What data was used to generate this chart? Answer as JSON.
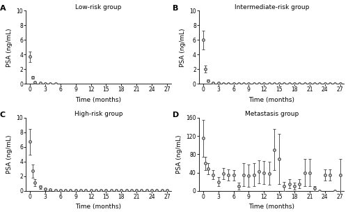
{
  "subplots": [
    {
      "label": "A",
      "title": "Low-risk group",
      "ylim": [
        0,
        10
      ],
      "yticks": [
        0,
        2,
        4,
        6,
        8,
        10
      ],
      "ylabel": "PSA (ng/mL)",
      "xlabel": "Time (months)",
      "xticks": [
        0,
        3,
        6,
        9,
        12,
        15,
        18,
        21,
        24,
        27
      ],
      "x": [
        0,
        0.5,
        1,
        2,
        3,
        4,
        5
      ],
      "y": [
        3.7,
        0.9,
        0.25,
        0.1,
        0.05,
        0.02,
        0.01
      ],
      "yerr": [
        0.75,
        0.2,
        0.08,
        0.04,
        0.02,
        0.01,
        0.01
      ]
    },
    {
      "label": "B",
      "title": "Intermediate-risk group",
      "ylim": [
        0,
        10
      ],
      "yticks": [
        0,
        2,
        4,
        6,
        8,
        10
      ],
      "ylabel": "PSA (ng/mL)",
      "xlabel": "Time (months)",
      "xticks": [
        0,
        3,
        6,
        9,
        12,
        15,
        18,
        21,
        24,
        27
      ],
      "x": [
        0,
        0.5,
        1,
        2,
        3,
        4,
        5,
        6,
        7,
        8,
        9,
        10,
        11,
        12,
        13,
        14,
        15,
        16,
        17,
        18,
        19,
        20,
        21,
        22,
        23,
        24,
        25,
        26,
        27
      ],
      "y": [
        6.0,
        2.0,
        0.45,
        0.15,
        0.08,
        0.06,
        0.05,
        0.05,
        0.05,
        0.04,
        0.04,
        0.04,
        0.04,
        0.03,
        0.03,
        0.03,
        0.02,
        0.02,
        0.02,
        0.02,
        0.02,
        0.02,
        0.02,
        0.02,
        0.02,
        0.02,
        0.02,
        0.02,
        0.02
      ],
      "yerr": [
        1.3,
        0.5,
        0.15,
        0.05,
        0.03,
        0.02,
        0.02,
        0.02,
        0.02,
        0.01,
        0.01,
        0.01,
        0.01,
        0.01,
        0.01,
        0.01,
        0.01,
        0.01,
        0.01,
        0.01,
        0.01,
        0.01,
        0.01,
        0.01,
        0.01,
        0.01,
        0.01,
        0.01,
        0.01
      ]
    },
    {
      "label": "C",
      "title": "High-risk group",
      "ylim": [
        0,
        10
      ],
      "yticks": [
        0,
        2,
        4,
        6,
        8,
        10
      ],
      "ylabel": "PSA (ng/mL)",
      "xlabel": "Time (months)",
      "xticks": [
        0,
        3,
        6,
        9,
        12,
        15,
        18,
        21,
        24,
        27
      ],
      "x": [
        0,
        0.5,
        1,
        2,
        3,
        4,
        5,
        6,
        7,
        8,
        9,
        10,
        11,
        12,
        13,
        14,
        15,
        16,
        17,
        18,
        19,
        20,
        21,
        22,
        23,
        24,
        25,
        26,
        27
      ],
      "y": [
        6.7,
        2.7,
        1.1,
        0.5,
        0.25,
        0.15,
        0.1,
        0.08,
        0.07,
        0.06,
        0.06,
        0.05,
        0.05,
        0.05,
        0.05,
        0.05,
        0.04,
        0.04,
        0.04,
        0.04,
        0.04,
        0.04,
        0.05,
        0.05,
        0.05,
        0.05,
        0.06,
        0.06,
        0.07
      ],
      "yerr": [
        1.8,
        0.9,
        0.5,
        0.2,
        0.1,
        0.06,
        0.04,
        0.03,
        0.02,
        0.02,
        0.02,
        0.02,
        0.02,
        0.02,
        0.02,
        0.02,
        0.02,
        0.02,
        0.02,
        0.02,
        0.02,
        0.02,
        0.02,
        0.02,
        0.02,
        0.02,
        0.02,
        0.02,
        0.02
      ]
    },
    {
      "label": "D",
      "title": "Metastasis group",
      "ylim": [
        0,
        160
      ],
      "yticks": [
        0,
        40,
        80,
        120,
        160
      ],
      "ylabel": "PSA (ng/mL)",
      "xlabel": "Time (months)",
      "xticks": [
        0,
        3,
        6,
        9,
        12,
        15,
        18,
        21,
        24,
        27
      ],
      "x": [
        0,
        0.5,
        1,
        2,
        3,
        4,
        5,
        6,
        7,
        8,
        9,
        10,
        11,
        12,
        13,
        14,
        15,
        16,
        17,
        18,
        19,
        20,
        21,
        22,
        23,
        24,
        25,
        26,
        27
      ],
      "y": [
        115,
        60,
        48,
        35,
        20,
        38,
        35,
        34,
        10,
        35,
        33,
        35,
        42,
        40,
        38,
        90,
        70,
        10,
        15,
        10,
        15,
        40,
        40,
        5,
        0,
        35,
        35,
        0,
        35
      ],
      "yerr": [
        40,
        15,
        12,
        10,
        10,
        12,
        12,
        12,
        8,
        25,
        25,
        25,
        25,
        25,
        25,
        45,
        55,
        10,
        10,
        8,
        10,
        30,
        30,
        5,
        0,
        12,
        12,
        0,
        35
      ]
    }
  ],
  "line_color": "#555555",
  "marker_color": "#555555",
  "marker": "o",
  "markersize": 2.5,
  "linewidth": 0.8,
  "elinewidth": 0.7,
  "capsize": 1.5,
  "background_color": "#ffffff",
  "label_fontsize": 6.5,
  "title_fontsize": 6.5,
  "tick_fontsize": 5.5,
  "panel_label_fontsize": 8
}
